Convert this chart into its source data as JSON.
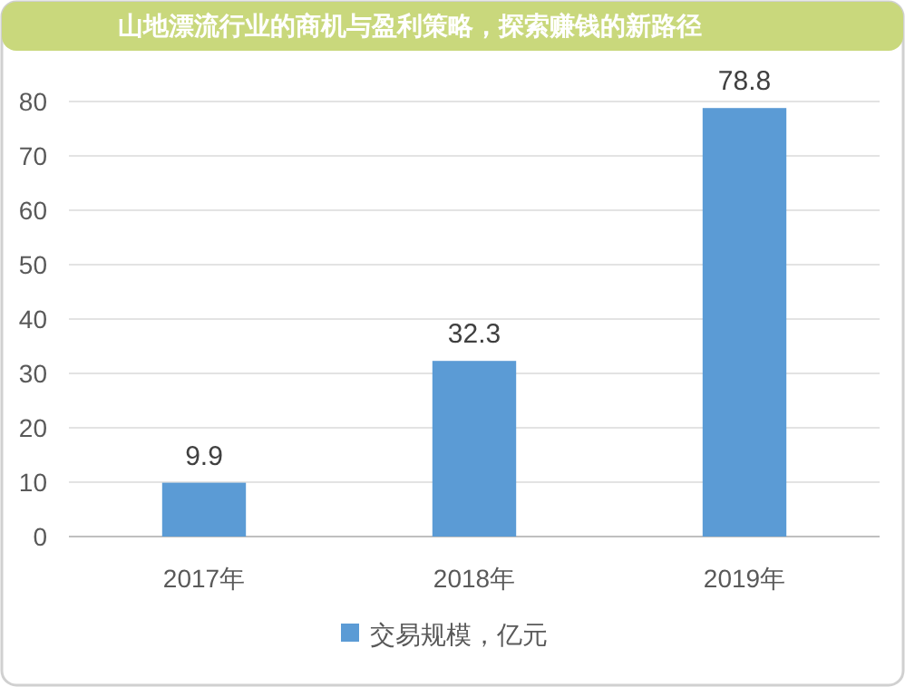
{
  "chart_data": {
    "type": "bar",
    "title": "山地漂流行业的商机与盈利策略，探索赚钱的新路径",
    "categories": [
      "2017年",
      "2018年",
      "2019年"
    ],
    "series": [
      {
        "name": "交易规模，亿元",
        "color": "#5b9bd5",
        "values": [
          9.9,
          32.3,
          78.8
        ]
      }
    ],
    "ylim": [
      0,
      80
    ],
    "yticks": [
      0,
      10,
      20,
      30,
      40,
      50,
      60,
      70,
      80
    ],
    "grid": "y",
    "legend": "bottom",
    "data_labels": true
  }
}
